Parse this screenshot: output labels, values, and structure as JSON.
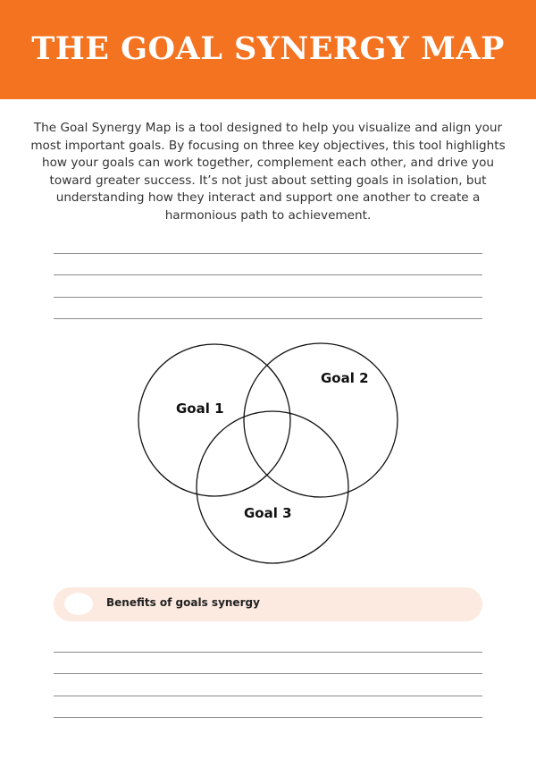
{
  "header": {
    "title": "THE GOAL SYNERGY MAP",
    "color": "#F47321"
  },
  "intro": "The Goal Synergy Map is a tool designed to help you visualize and align your most important goals. By focusing on three key objectives, this tool highlights how your goals can work together, complement each other, and drive you toward greater success. It’s not just about setting goals in isolation, but understanding how they interact and support one another to create a harmonious path to achievement.",
  "venn": {
    "goals": [
      "Goal 1",
      "Goal 2",
      "Goal 3"
    ]
  },
  "benefits": {
    "label": "Benefits of goals synergy",
    "color": "#FCE9DF"
  }
}
